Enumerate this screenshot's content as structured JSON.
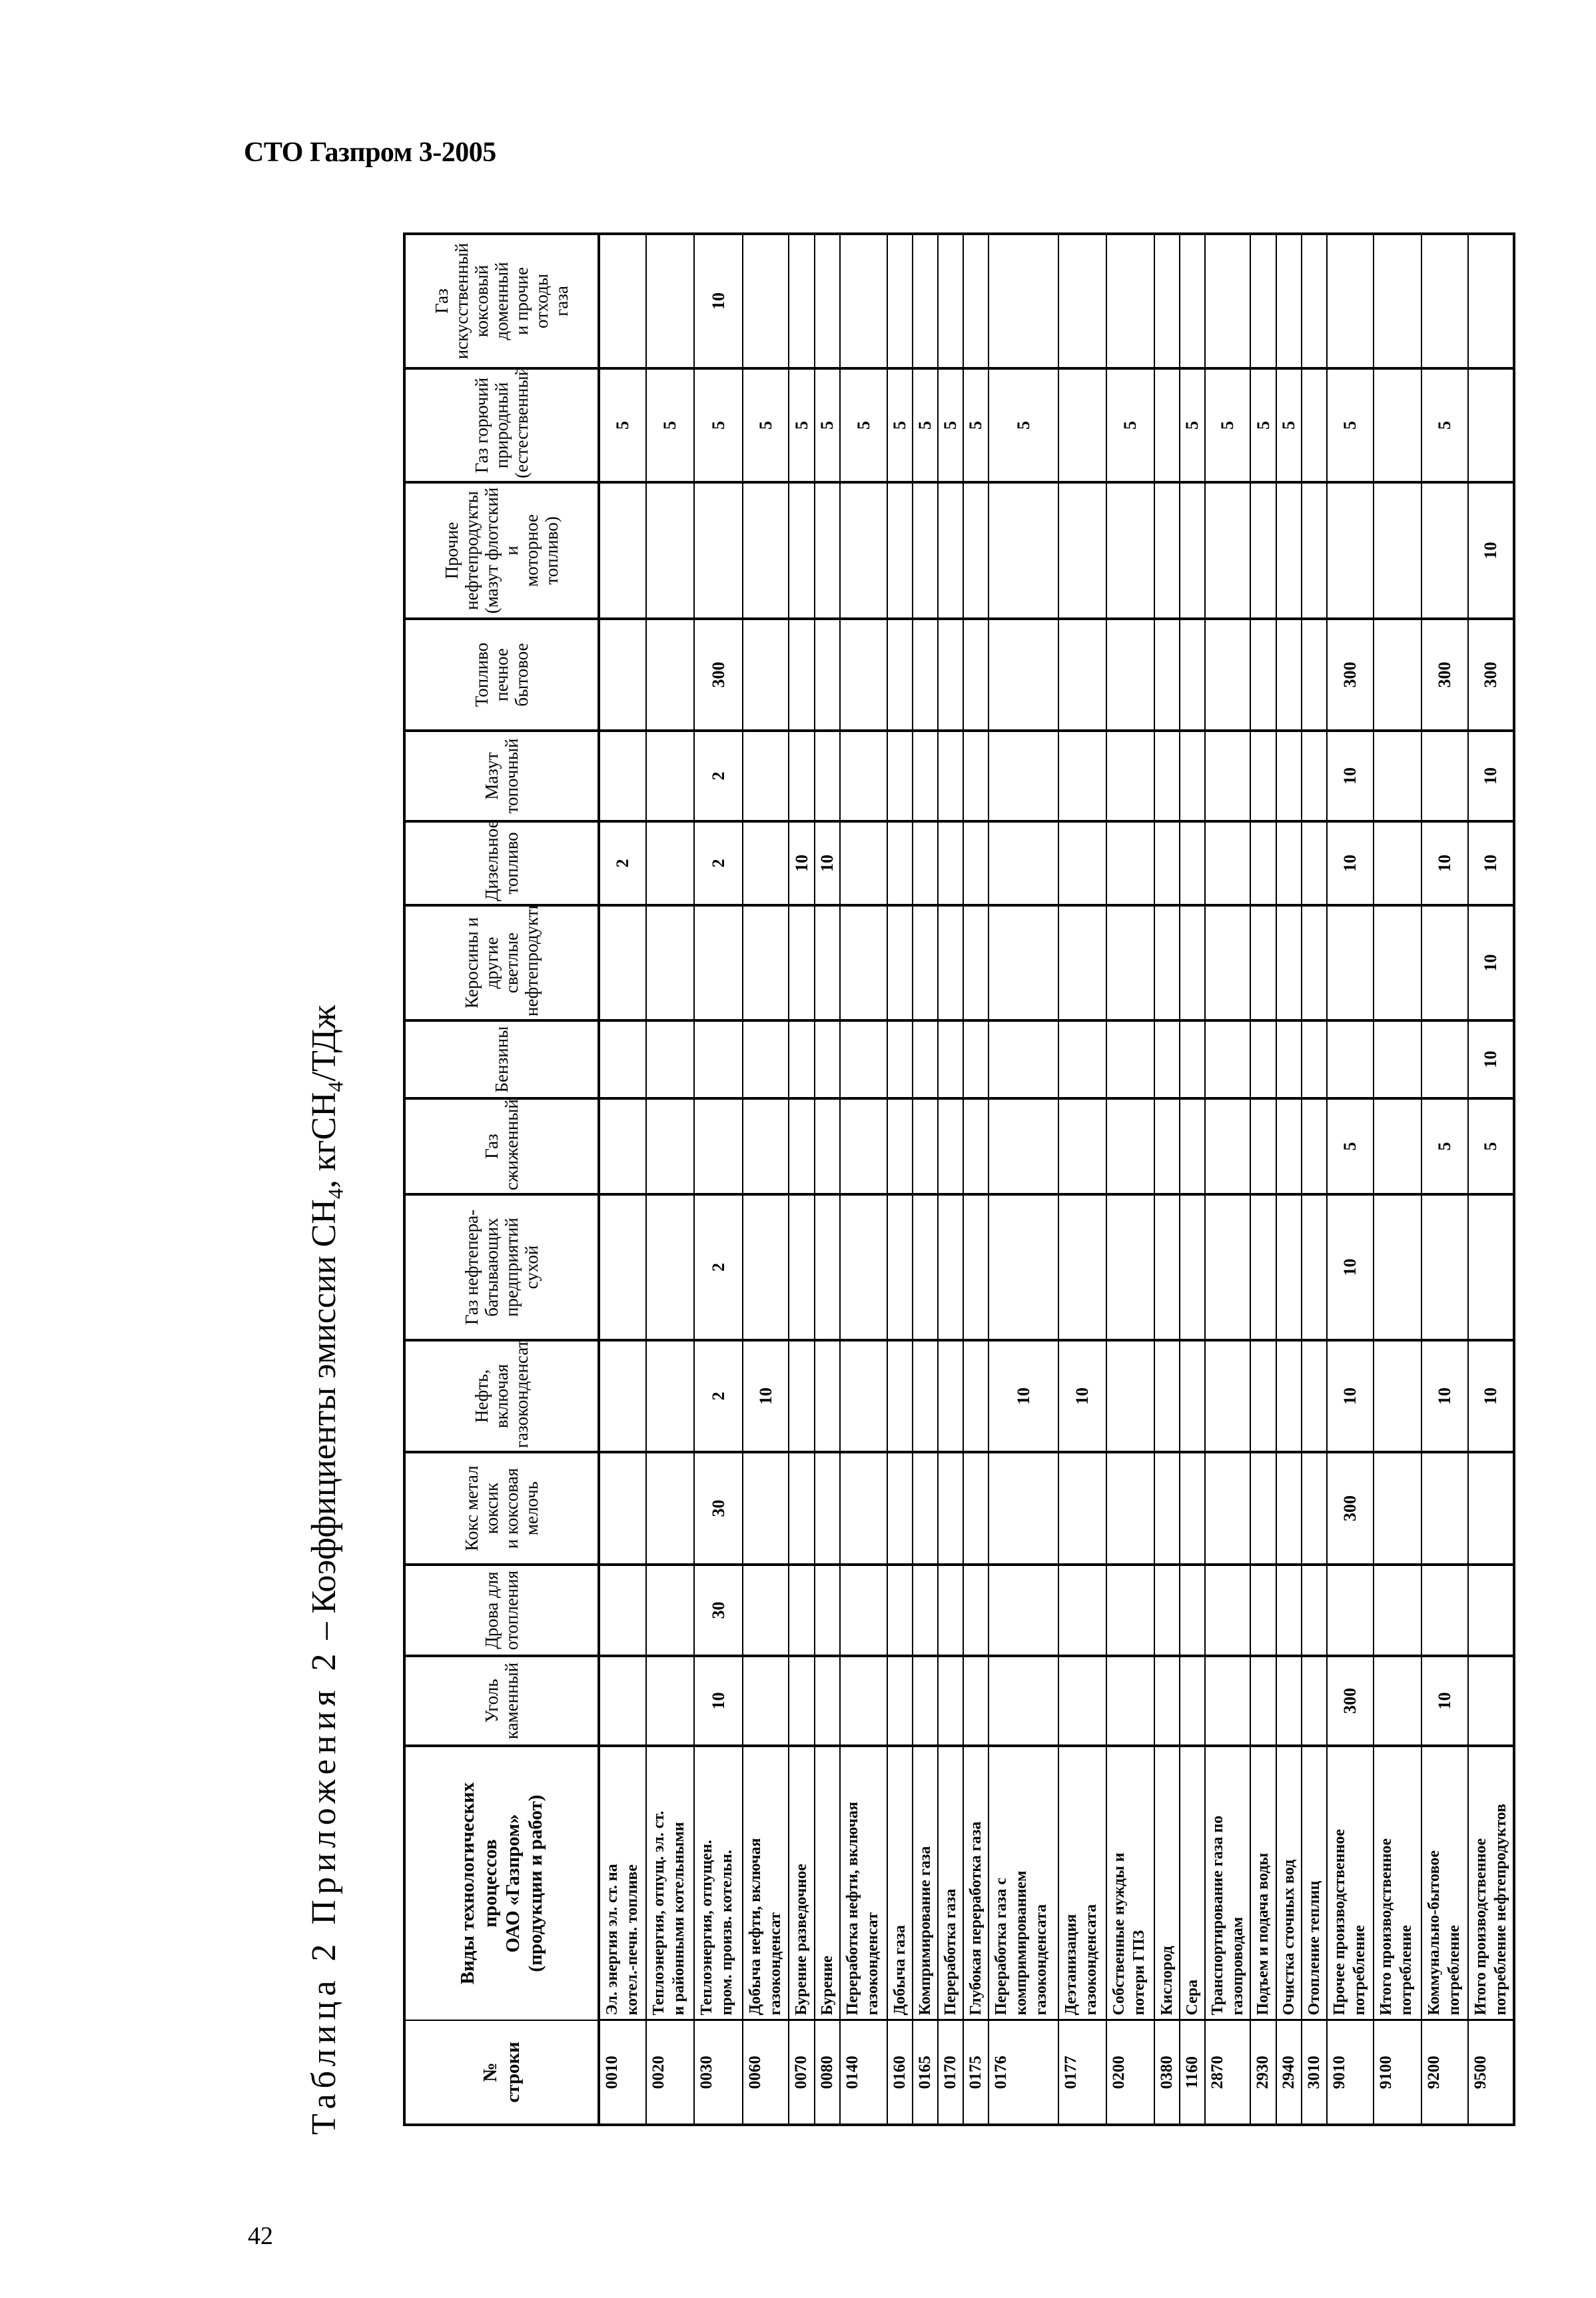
{
  "header": {
    "doc_title": "СТО Газпром 3-2005"
  },
  "caption": {
    "prefix": "Таблица 2 Приложения 2",
    "dash": " – Коэффициенты эмиссии СН",
    "sub1": "4",
    "mid": ", кгСН",
    "sub2": "4",
    "suffix": "/ТДж"
  },
  "page_number": "42",
  "table": {
    "code_header": "№\nстроки",
    "name_header": "Виды технологических\nпроцессов\nОАО «Газпром»\n(продукции и работ)",
    "fuel_columns": [
      "Уголь каменный",
      "Дрова для\nотопления",
      "Кокс метал коксик\nи коксовая мелочь",
      "Нефть, включая\nгазоконденсат",
      "Газ нефтепера-\nбатывающих\nпредприятий сухой",
      "Газ сжиженный",
      "Бензины",
      "Керосины и другие\nсветлые\nнефтепродукты",
      "Дизельное топливо",
      "Мазут топочный",
      "Топливо печное\nбытовое",
      "Прочие\nнефтепродукты\n(мазут флотский и\nмоторное топливо)",
      "Газ горючий\nприродный\n(естественный)",
      "Газ искусственный\nкоксовый доменный\nи прочие отходы\nгаза"
    ],
    "rows": [
      {
        "code": "0010",
        "label": "Эл. энергия эл. ст. на\nкотел.-печн. топливе",
        "values": [
          "",
          "",
          "",
          "",
          "",
          "",
          "",
          "",
          "2",
          "",
          "",
          "",
          "5",
          ""
        ]
      },
      {
        "code": "0020",
        "label": "Теплоэнергия, отпущ. эл. ст.\nи районными котельными",
        "values": [
          "",
          "",
          "",
          "",
          "",
          "",
          "",
          "",
          "",
          "",
          "",
          "",
          "5",
          ""
        ]
      },
      {
        "code": "0030",
        "label": "Теплоэнергия, отпущен.\nпром. произв. котельн.",
        "values": [
          "10",
          "30",
          "30",
          "2",
          "2",
          "",
          "",
          "",
          "2",
          "2",
          "300",
          "",
          "5",
          "10"
        ]
      },
      {
        "code": "0060",
        "label": "Добыча нефти, включая\nгазоконденсат",
        "values": [
          "",
          "",
          "",
          "10",
          "",
          "",
          "",
          "",
          "",
          "",
          "",
          "",
          "5",
          ""
        ]
      },
      {
        "code": "0070",
        "label": "Бурение разведочное",
        "values": [
          "",
          "",
          "",
          "",
          "",
          "",
          "",
          "",
          "10",
          "",
          "",
          "",
          "5",
          ""
        ]
      },
      {
        "code": "0080",
        "label": "Бурение",
        "values": [
          "",
          "",
          "",
          "",
          "",
          "",
          "",
          "",
          "10",
          "",
          "",
          "",
          "5",
          ""
        ]
      },
      {
        "code": "0140",
        "label": "Переработка нефти, включая\nгазоконденсат",
        "values": [
          "",
          "",
          "",
          "",
          "",
          "",
          "",
          "",
          "",
          "",
          "",
          "",
          "5",
          ""
        ]
      },
      {
        "code": "0160",
        "label": "Добыча газа",
        "values": [
          "",
          "",
          "",
          "",
          "",
          "",
          "",
          "",
          "",
          "",
          "",
          "",
          "5",
          ""
        ]
      },
      {
        "code": "0165",
        "label": "Компримирование газа",
        "values": [
          "",
          "",
          "",
          "",
          "",
          "",
          "",
          "",
          "",
          "",
          "",
          "",
          "5",
          ""
        ]
      },
      {
        "code": "0170",
        "label": "Переработка газа",
        "values": [
          "",
          "",
          "",
          "",
          "",
          "",
          "",
          "",
          "",
          "",
          "",
          "",
          "5",
          ""
        ]
      },
      {
        "code": "0175",
        "label": "Глубокая переработка газа",
        "values": [
          "",
          "",
          "",
          "",
          "",
          "",
          "",
          "",
          "",
          "",
          "",
          "",
          "5",
          ""
        ]
      },
      {
        "code": "0176",
        "label": "Переработка газа с\nкомпримированием\nгазоконденсата",
        "values": [
          "",
          "",
          "",
          "10",
          "",
          "",
          "",
          "",
          "",
          "",
          "",
          "",
          "5",
          ""
        ]
      },
      {
        "code": "0177",
        "label": "Деэтанизация\nгазоконденсата",
        "values": [
          "",
          "",
          "",
          "10",
          "",
          "",
          "",
          "",
          "",
          "",
          "",
          "",
          "",
          ""
        ]
      },
      {
        "code": "0200",
        "label": "Собственные нужды и\nпотери ГПЗ",
        "values": [
          "",
          "",
          "",
          "",
          "",
          "",
          "",
          "",
          "",
          "",
          "",
          "",
          "5",
          ""
        ]
      },
      {
        "code": "0380",
        "label": "Кислород",
        "values": [
          "",
          "",
          "",
          "",
          "",
          "",
          "",
          "",
          "",
          "",
          "",
          "",
          "",
          ""
        ]
      },
      {
        "code": "1160",
        "label": "Сера",
        "values": [
          "",
          "",
          "",
          "",
          "",
          "",
          "",
          "",
          "",
          "",
          "",
          "",
          "5",
          ""
        ]
      },
      {
        "code": "2870",
        "label": "Транспортирование газа по\nгазопроводам",
        "values": [
          "",
          "",
          "",
          "",
          "",
          "",
          "",
          "",
          "",
          "",
          "",
          "",
          "5",
          ""
        ]
      },
      {
        "code": "2930",
        "label": "Подъем и подача воды",
        "values": [
          "",
          "",
          "",
          "",
          "",
          "",
          "",
          "",
          "",
          "",
          "",
          "",
          "5",
          ""
        ]
      },
      {
        "code": "2940",
        "label": "Очистка сточных вод",
        "values": [
          "",
          "",
          "",
          "",
          "",
          "",
          "",
          "",
          "",
          "",
          "",
          "",
          "5",
          ""
        ]
      },
      {
        "code": "3010",
        "label": "Отопление теплиц",
        "values": [
          "",
          "",
          "",
          "",
          "",
          "",
          "",
          "",
          "",
          "",
          "",
          "",
          "",
          ""
        ]
      },
      {
        "code": "9010",
        "label": "Прочее производственное\nпотребление",
        "values": [
          "300",
          "",
          "300",
          "10",
          "10",
          "5",
          "",
          "",
          "10",
          "10",
          "300",
          "",
          "5",
          ""
        ]
      },
      {
        "code": "9100",
        "label": "Итого производственное\nпотребление",
        "values": [
          "",
          "",
          "",
          "",
          "",
          "",
          "",
          "",
          "",
          "",
          "",
          "",
          "",
          ""
        ]
      },
      {
        "code": "9200",
        "label": "Коммунально-бытовое\nпотребление",
        "values": [
          "10",
          "",
          "",
          "10",
          "",
          "5",
          "",
          "",
          "10",
          "",
          "300",
          "",
          "5",
          ""
        ]
      },
      {
        "code": "9500",
        "label": "Итого производственное\nпотребление нефтепродуктов",
        "values": [
          "",
          "",
          "",
          "10",
          "",
          "5",
          "10",
          "10",
          "10",
          "10",
          "300",
          "10",
          "",
          ""
        ]
      }
    ]
  }
}
